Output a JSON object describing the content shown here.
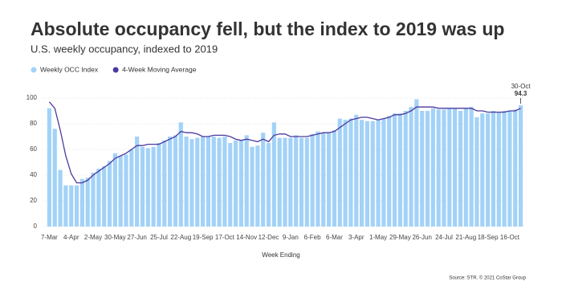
{
  "chart_data": {
    "type": "bar-line",
    "title": "Absolute occupancy fell, but the index to 2019 was up",
    "subtitle": "U.S. weekly occupancy, indexed to 2019",
    "x_label": "Week Ending",
    "source": "Source: STR. © 2021 CoStar Group",
    "annotation": "30-Oct",
    "categories": [
      "7-Mar",
      null,
      null,
      null,
      "4-Apr",
      null,
      null,
      null,
      "2-May",
      null,
      null,
      null,
      "30-May",
      null,
      null,
      null,
      "27-Jun",
      null,
      null,
      null,
      "25-Jul",
      null,
      null,
      null,
      "22-Aug",
      null,
      null,
      null,
      "19-Sep",
      null,
      null,
      null,
      "17-Oct",
      null,
      null,
      null,
      "14-Nov",
      null,
      null,
      null,
      "12-Dec",
      null,
      null,
      null,
      "9-Jan",
      null,
      null,
      null,
      "6-Feb",
      null,
      null,
      null,
      "6-Mar",
      null,
      null,
      null,
      "3-Apr",
      null,
      null,
      null,
      "1-May",
      null,
      null,
      null,
      "29-May",
      null,
      null,
      null,
      "26-Jun",
      null,
      null,
      null,
      "24-Jul",
      null,
      null,
      null,
      "21-Aug",
      null,
      null,
      null,
      "18-Sep",
      null,
      null,
      null,
      "16-Oct",
      null,
      null
    ],
    "series": [
      {
        "name": "Weekly OCC Index",
        "color": "#a3d2f7",
        "kind": "bar",
        "values": [
          92,
          76,
          44,
          32,
          32,
          32,
          37,
          38,
          42,
          45,
          47,
          51,
          57,
          55,
          56,
          60,
          70,
          62,
          61,
          62,
          65,
          67,
          70,
          71,
          81,
          70,
          68,
          69,
          70,
          70,
          70,
          69,
          70,
          65,
          67,
          67,
          71,
          62,
          63,
          73,
          65,
          81,
          69,
          69,
          69,
          71,
          69,
          69,
          72,
          74,
          73,
          73,
          75,
          84,
          83,
          84,
          87,
          83,
          82,
          82,
          83,
          84,
          86,
          88,
          88,
          90,
          93,
          99,
          90,
          90,
          92,
          91,
          91,
          92,
          92,
          90,
          92,
          93,
          85,
          88,
          88,
          90,
          89,
          90,
          90,
          91,
          94.3
        ]
      },
      {
        "name": "4-Week Moving Average",
        "color": "#4b3a9e",
        "kind": "line",
        "values": [
          97,
          92,
          75,
          55,
          41,
          34,
          34,
          36,
          40,
          43,
          46,
          49,
          53,
          55,
          57,
          60,
          63,
          63,
          64,
          64,
          64,
          66,
          68,
          70,
          74,
          73,
          73,
          72,
          70,
          70,
          71,
          71,
          71,
          70,
          68,
          67,
          68,
          67,
          66,
          68,
          66,
          71,
          72,
          72,
          70,
          70,
          70,
          70,
          71,
          72,
          73,
          73,
          74,
          77,
          80,
          83,
          84,
          85,
          85,
          84,
          83,
          84,
          85,
          87,
          87,
          88,
          90,
          93,
          93,
          93,
          93,
          92,
          92,
          92,
          92,
          92,
          92,
          92,
          90,
          90,
          89,
          89,
          89,
          89,
          90,
          90,
          92
        ]
      }
    ],
    "ylim": [
      0,
      105
    ],
    "yticks": [
      0,
      20,
      40,
      60,
      80,
      100
    ],
    "grid": true
  }
}
